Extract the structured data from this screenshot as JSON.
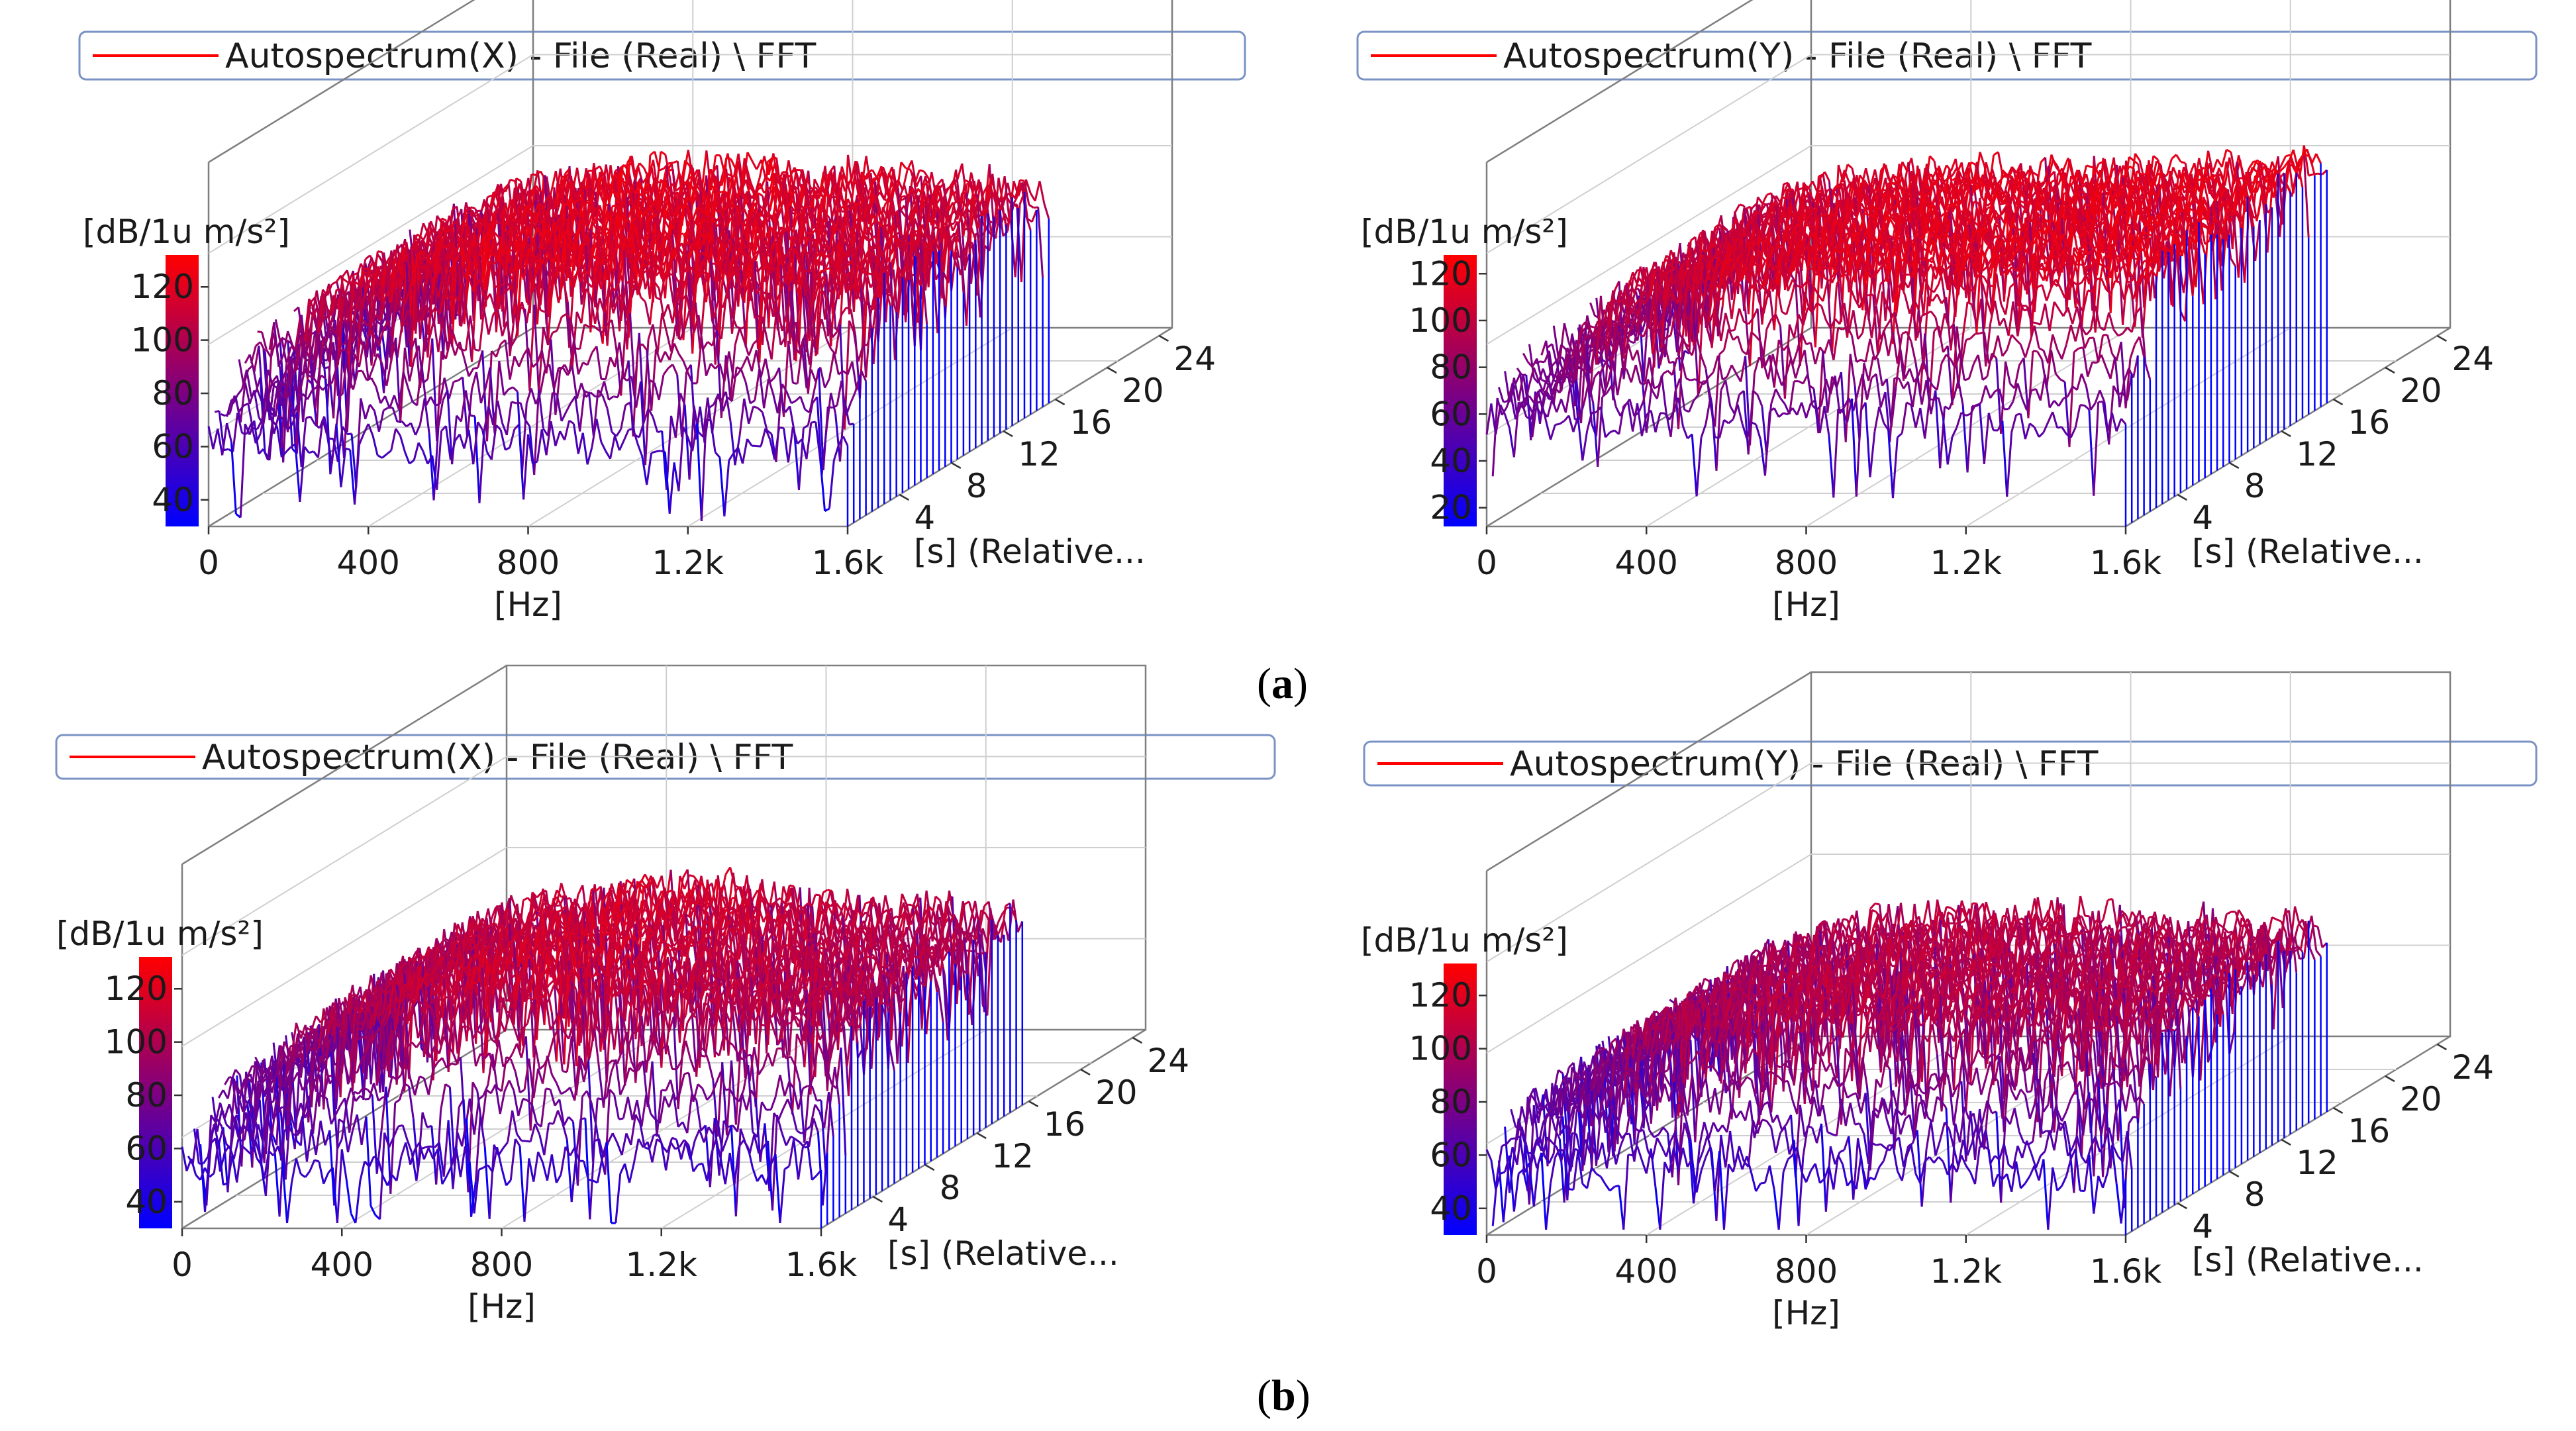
{
  "figure": {
    "captions": [
      "a",
      "b"
    ]
  },
  "chart_data": [
    {
      "type": "waterfall-3d",
      "row": "a",
      "legend": "Autospectrum(X) - File (Real) \\ FFT",
      "series_color": "#ff0000",
      "zlabel": "[dB/1u m/s²]",
      "zticks": [
        "40",
        "60",
        "80",
        "100",
        "120"
      ],
      "zlim": [
        30,
        132
      ],
      "xlabel": "[Hz]",
      "xticks": [
        "0",
        "400",
        "800",
        "1.2k",
        "1.6k"
      ],
      "xlim": [
        0,
        1600
      ],
      "ylabel": "[s] (Relative...",
      "yticks": [
        "4",
        "8",
        "12",
        "16",
        "20",
        "24"
      ],
      "ylim": [
        0,
        25
      ],
      "colormap": [
        "#0000ff",
        "#ff0000"
      ],
      "profile": [
        [
          0,
          88
        ],
        [
          50,
          80
        ],
        [
          100,
          74
        ],
        [
          150,
          100
        ],
        [
          200,
          104
        ],
        [
          300,
          110
        ],
        [
          400,
          113
        ],
        [
          600,
          117
        ],
        [
          800,
          118
        ],
        [
          1000,
          116
        ],
        [
          1200,
          114
        ],
        [
          1400,
          112
        ],
        [
          1600,
          108
        ]
      ],
      "noise_floor": 62,
      "seed": 11
    },
    {
      "type": "waterfall-3d",
      "row": "a",
      "legend": "Autospectrum(Y) - File (Real) \\ FFT",
      "series_color": "#ff0000",
      "zlabel": "[dB/1u m/s²]",
      "zticks": [
        "20",
        "40",
        "60",
        "80",
        "100",
        "120"
      ],
      "zlim": [
        12,
        128
      ],
      "xlabel": "[Hz]",
      "xticks": [
        "0",
        "400",
        "800",
        "1.2k",
        "1.6k"
      ],
      "xlim": [
        0,
        1600
      ],
      "ylabel": "[s] (Relative...",
      "yticks": [
        "4",
        "8",
        "12",
        "16",
        "20",
        "24"
      ],
      "ylim": [
        0,
        25
      ],
      "colormap": [
        "#0000ff",
        "#ff0000"
      ],
      "profile": [
        [
          0,
          72
        ],
        [
          100,
          66
        ],
        [
          200,
          96
        ],
        [
          300,
          102
        ],
        [
          400,
          106
        ],
        [
          600,
          110
        ],
        [
          800,
          112
        ],
        [
          1000,
          111
        ],
        [
          1200,
          112
        ],
        [
          1400,
          113
        ],
        [
          1600,
          114
        ]
      ],
      "noise_floor": 58,
      "seed": 23
    },
    {
      "type": "waterfall-3d",
      "row": "b",
      "legend": "Autospectrum(X) - File (Real) \\ FFT",
      "series_color": "#ff0000",
      "zlabel": "[dB/1u m/s²]",
      "zticks": [
        "40",
        "60",
        "80",
        "100",
        "120"
      ],
      "zlim": [
        30,
        132
      ],
      "xlabel": "[Hz]",
      "xticks": [
        "0",
        "400",
        "800",
        "1.2k",
        "1.6k"
      ],
      "xlim": [
        0,
        1600
      ],
      "ylabel": "[s] (Relative...",
      "yticks": [
        "4",
        "8",
        "12",
        "16",
        "20",
        "24"
      ],
      "ylim": [
        0,
        25
      ],
      "colormap": [
        "#0000ff",
        "#ff0000"
      ],
      "profile": [
        [
          0,
          70
        ],
        [
          100,
          74
        ],
        [
          200,
          92
        ],
        [
          300,
          100
        ],
        [
          400,
          104
        ],
        [
          600,
          110
        ],
        [
          800,
          112
        ],
        [
          1000,
          108
        ],
        [
          1200,
          104
        ],
        [
          1400,
          102
        ],
        [
          1600,
          100
        ]
      ],
      "noise_floor": 55,
      "seed": 37
    },
    {
      "type": "waterfall-3d",
      "row": "b",
      "legend": "Autospectrum(Y) - File (Real) \\ FFT",
      "series_color": "#ff0000",
      "zlabel": "[dB/1u m/s²]",
      "zticks": [
        "40",
        "60",
        "80",
        "100",
        "120"
      ],
      "zlim": [
        30,
        132
      ],
      "xlabel": "[Hz]",
      "xticks": [
        "0",
        "400",
        "800",
        "1.2k",
        "1.6k"
      ],
      "xlim": [
        0,
        1600
      ],
      "ylabel": "[s] (Relative...",
      "yticks": [
        "4",
        "8",
        "12",
        "16",
        "20",
        "24"
      ],
      "ylim": [
        0,
        25
      ],
      "colormap": [
        "#0000ff",
        "#ff0000"
      ],
      "profile": [
        [
          0,
          68
        ],
        [
          100,
          72
        ],
        [
          200,
          86
        ],
        [
          300,
          94
        ],
        [
          400,
          98
        ],
        [
          600,
          102
        ],
        [
          800,
          104
        ],
        [
          1000,
          102
        ],
        [
          1200,
          100
        ],
        [
          1400,
          100
        ],
        [
          1600,
          98
        ]
      ],
      "noise_floor": 55,
      "seed": 53
    }
  ]
}
